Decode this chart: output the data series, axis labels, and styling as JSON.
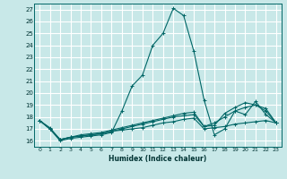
{
  "xlabel": "Humidex (Indice chaleur)",
  "ylabel": "",
  "xlim": [
    -0.5,
    23.5
  ],
  "ylim": [
    15.5,
    27.5
  ],
  "xticks": [
    0,
    1,
    2,
    3,
    4,
    5,
    6,
    7,
    8,
    9,
    10,
    11,
    12,
    13,
    14,
    15,
    16,
    17,
    18,
    19,
    20,
    21,
    22,
    23
  ],
  "yticks": [
    16,
    17,
    18,
    19,
    20,
    21,
    22,
    23,
    24,
    25,
    26,
    27
  ],
  "bg_color": "#c8e8e8",
  "grid_color": "#ffffff",
  "line_color": "#006666",
  "series": [
    [
      17.7,
      17.0,
      16.0,
      16.2,
      16.3,
      16.4,
      16.5,
      16.7,
      18.5,
      20.6,
      21.5,
      24.0,
      25.0,
      27.1,
      26.5,
      23.5,
      19.4,
      16.5,
      17.0,
      18.5,
      18.2,
      19.3,
      18.2,
      17.5
    ],
    [
      17.7,
      17.0,
      16.1,
      16.3,
      16.4,
      16.5,
      16.6,
      16.8,
      16.9,
      17.0,
      17.1,
      17.3,
      17.5,
      17.6,
      17.8,
      17.9,
      17.0,
      17.1,
      17.2,
      17.4,
      17.5,
      17.6,
      17.7,
      17.5
    ],
    [
      17.7,
      17.0,
      16.1,
      16.3,
      16.4,
      16.5,
      16.6,
      16.8,
      17.0,
      17.2,
      17.4,
      17.6,
      17.8,
      18.0,
      18.1,
      18.2,
      17.2,
      17.5,
      18.0,
      18.5,
      18.8,
      19.0,
      18.7,
      17.5
    ],
    [
      17.7,
      17.1,
      16.1,
      16.3,
      16.5,
      16.6,
      16.7,
      16.9,
      17.1,
      17.3,
      17.5,
      17.7,
      17.9,
      18.1,
      18.3,
      18.4,
      17.2,
      17.3,
      18.3,
      18.8,
      19.2,
      19.0,
      18.5,
      17.5
    ]
  ]
}
